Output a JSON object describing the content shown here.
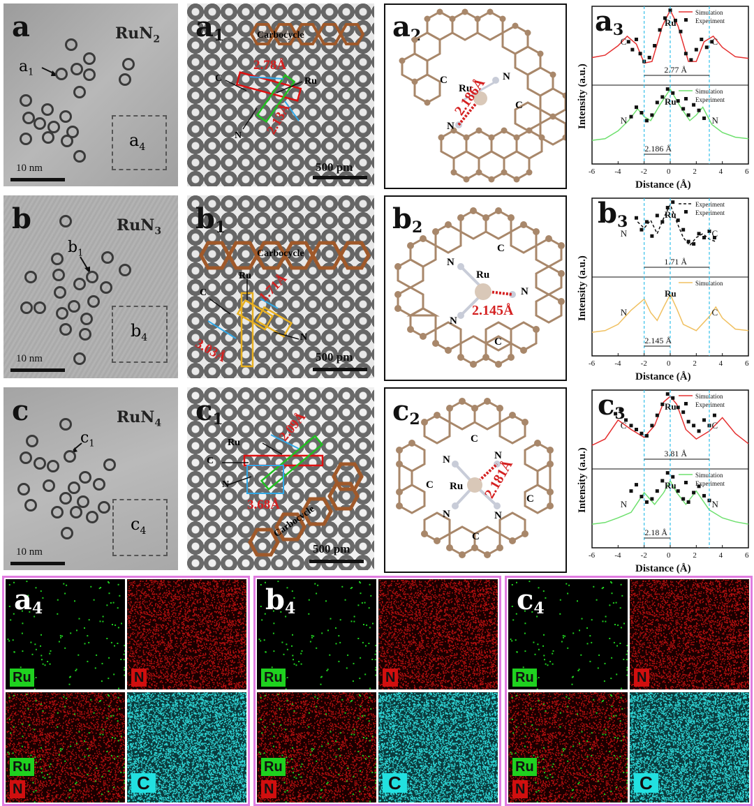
{
  "row_a": {
    "tem_label": "a",
    "formula_main": "RuN",
    "formula_sub": "2",
    "arrow_label": "a",
    "arrow_label_sub": "1",
    "box_label": "a",
    "box_label_sub": "4",
    "scale": "10 nm",
    "zoom_label": "a",
    "zoom_label_sub": "1",
    "zoom_scale": "500 pm",
    "zoom_carbocycle": "Carbocycle",
    "zoom_d1": "2.78Å",
    "zoom_d2": "2.13Å",
    "zoom_c": "C",
    "zoom_ru": "Ru",
    "zoom_n": "N",
    "struct_label": "a",
    "struct_label_sub": "2",
    "struct_bond": "2.186Å",
    "struct_ru": "Ru",
    "struct_n1": "N",
    "struct_n2": "N",
    "struct_c1": "C",
    "struct_c2": "C",
    "chart_label": "a",
    "chart_label_sub": "3"
  },
  "row_b": {
    "tem_label": "b",
    "formula_main": "RuN",
    "formula_sub": "3",
    "arrow_label": "b",
    "arrow_label_sub": "1",
    "box_label": "b",
    "box_label_sub": "4",
    "scale": "10 nm",
    "zoom_label": "b",
    "zoom_label_sub": "1",
    "zoom_scale": "500 pm",
    "zoom_carbocycle": "Carbocycle",
    "zoom_d1": "1.71Å",
    "zoom_d2": "3.03Å",
    "zoom_c": "C",
    "zoom_ru": "Ru",
    "zoom_n": "N",
    "struct_label": "b",
    "struct_label_sub": "2",
    "struct_bond": "2.145Å",
    "struct_ru": "Ru",
    "struct_n1": "N",
    "struct_n2": "N",
    "struct_n3": "N",
    "struct_c1": "C",
    "struct_c2": "C",
    "chart_label": "b",
    "chart_label_sub": "3"
  },
  "row_c": {
    "tem_label": "c",
    "formula_main": "RuN",
    "formula_sub": "4",
    "arrow_label": "c",
    "arrow_label_sub": "1",
    "box_label": "c",
    "box_label_sub": "4",
    "scale": "10 nm",
    "zoom_label": "c",
    "zoom_label_sub": "1",
    "zoom_scale": "500 pm",
    "zoom_carbocycle": "Carbocycle",
    "zoom_d1": "2.09Å",
    "zoom_d2": "3.68Å",
    "zoom_c": "C",
    "zoom_ru": "Ru",
    "zoom_n": "N",
    "struct_label": "c",
    "struct_label_sub": "2",
    "struct_bond": "2.181Å",
    "struct_ru": "Ru",
    "struct_n1": "N",
    "struct_n2": "N",
    "struct_n3": "N",
    "struct_n4": "N",
    "struct_c1": "C",
    "struct_c2": "C",
    "struct_c3": "C",
    "struct_c4": "C",
    "chart_label": "c",
    "chart_label_sub": "3"
  },
  "eds": [
    {
      "label": "a",
      "sub": "4",
      "ru": "Ru",
      "n": "N",
      "c": "C"
    },
    {
      "label": "b",
      "sub": "4",
      "ru": "Ru",
      "n": "N",
      "c": "C"
    },
    {
      "label": "c",
      "sub": "4",
      "ru": "Ru",
      "n": "N",
      "c": "C"
    }
  ],
  "colors": {
    "eds_frame": "#e07be0",
    "ru_tag": "#1fd11f",
    "n_tag": "#d10f0f",
    "c_tag": "#22e0e0",
    "atom_c": "#a8876a",
    "atom_n": "#c8ccd8",
    "atom_ru": "#d9c8b8",
    "bond_red": "#d42020",
    "sim_red": "#e53030",
    "sim_green": "#6ee06e",
    "sim_yellow": "#f0c060",
    "marker_line": "#35c0e8"
  },
  "chart_data": [
    {
      "type": "line",
      "panel": "a3",
      "xlabel": "Distance (Å)",
      "ylabel": "Intensity (a.u.)",
      "xlim": [
        -6,
        6
      ],
      "x_ticks": [
        "-6",
        "-4",
        "-2",
        "0",
        "2",
        "4",
        "6"
      ],
      "subplots": [
        {
          "series": [
            {
              "name": "Simulation",
              "style": "line",
              "color": "#e53030",
              "x": [
                -6,
                -5,
                -4,
                -3.3,
                -2.6,
                -2,
                -1.4,
                -0.6,
                0,
                0.6,
                1.4,
                2,
                2.6,
                3.3,
                4,
                5,
                6
              ],
              "y": [
                0.35,
                0.38,
                0.5,
                0.62,
                0.52,
                0.28,
                0.3,
                0.75,
                0.95,
                0.75,
                0.3,
                0.3,
                0.55,
                0.62,
                0.48,
                0.36,
                0.34
              ]
            },
            {
              "name": "Experiment",
              "style": "square",
              "color": "#111111",
              "x": [
                -3.2,
                -2.9,
                -2.6,
                -2.3,
                -2.0,
                -1.6,
                -1.2,
                -0.8,
                -0.4,
                0,
                0.4,
                0.8,
                1.2,
                1.6,
                2.0,
                2.4,
                2.8,
                3.2
              ],
              "y": [
                0.55,
                0.45,
                0.58,
                0.4,
                0.3,
                0.35,
                0.5,
                0.7,
                0.85,
                0.95,
                0.82,
                0.68,
                0.4,
                0.32,
                0.45,
                0.58,
                0.48,
                0.55
              ]
            }
          ],
          "peak_labels": [
            "C",
            "Ru",
            "C"
          ],
          "annotation": "2.77 Å"
        },
        {
          "series": [
            {
              "name": "Simulation",
              "style": "line",
              "color": "#6ee06e",
              "x": [
                -6,
                -5,
                -4,
                -3.2,
                -2.5,
                -2,
                -1.5,
                -0.8,
                0,
                0.8,
                1.5,
                2,
                2.5,
                3.2,
                4,
                5,
                6
              ],
              "y": [
                0.3,
                0.32,
                0.42,
                0.55,
                0.7,
                0.6,
                0.55,
                0.75,
                0.95,
                0.72,
                0.55,
                0.62,
                0.72,
                0.5,
                0.4,
                0.34,
                0.32
              ]
            },
            {
              "name": "Experiment",
              "style": "square",
              "color": "#111111",
              "x": [
                -3,
                -2.6,
                -2.2,
                -1.8,
                -1.4,
                -1,
                -0.6,
                -0.2,
                0.2,
                0.6,
                1,
                1.4,
                1.8,
                2.2,
                2.6
              ],
              "y": [
                0.6,
                0.72,
                0.65,
                0.55,
                0.62,
                0.78,
                0.85,
                0.95,
                0.9,
                0.8,
                0.7,
                0.62,
                0.75,
                0.68,
                0.58
              ]
            }
          ],
          "peak_labels": [
            "N",
            "Ru",
            "N"
          ],
          "annotation": "2.186 Å"
        }
      ]
    },
    {
      "type": "line",
      "panel": "b3",
      "xlabel": "Distance (Å)",
      "ylabel": "Intensity (a.u.)",
      "xlim": [
        -6,
        6
      ],
      "x_ticks": [
        "-6",
        "-4",
        "-2",
        "0",
        "2",
        "4",
        "6"
      ],
      "subplots": [
        {
          "series": [
            {
              "name": "Experiment",
              "style": "dashed",
              "color": "#111111",
              "x": [
                -2.5,
                -2,
                -1.5,
                -1,
                -0.5,
                0,
                0.5,
                1,
                1.5,
                2,
                2.5,
                3,
                3.5
              ],
              "y": [
                0.7,
                0.62,
                0.72,
                0.55,
                0.75,
                0.92,
                0.7,
                0.5,
                0.4,
                0.5,
                0.55,
                0.48,
                0.45
              ]
            },
            {
              "name": "Experiment",
              "style": "square",
              "color": "#111111",
              "x": [
                -2.6,
                -2.2,
                -1.8,
                -1.4,
                -1,
                -0.6,
                -0.2,
                0.2,
                0.6,
                1,
                1.4,
                1.8,
                2.2,
                2.6,
                3,
                3.4
              ],
              "y": [
                0.75,
                0.6,
                0.7,
                0.52,
                0.78,
                0.7,
                0.88,
                0.95,
                0.72,
                0.6,
                0.45,
                0.42,
                0.55,
                0.5,
                0.58,
                0.5
              ]
            }
          ],
          "peak_labels": [
            "N",
            "Ru",
            "C"
          ],
          "annotation": "1.71 Å"
        },
        {
          "series": [
            {
              "name": "Simulation",
              "style": "line",
              "color": "#f0c060",
              "x": [
                -6,
                -5,
                -4,
                -3,
                -2,
                -1.5,
                -1,
                -0.5,
                0,
                0.5,
                1,
                2,
                3,
                3.5,
                4,
                5,
                6
              ],
              "y": [
                0.3,
                0.32,
                0.4,
                0.58,
                0.72,
                0.55,
                0.45,
                0.62,
                0.78,
                0.6,
                0.4,
                0.32,
                0.5,
                0.62,
                0.48,
                0.34,
                0.32
              ]
            }
          ],
          "peak_labels": [
            "N",
            "Ru",
            "C"
          ],
          "annotation": "2.145 Å"
        }
      ]
    },
    {
      "type": "line",
      "panel": "c3",
      "xlabel": "Distance (Å)",
      "ylabel": "Intensity (a.u.)",
      "xlim": [
        -6,
        6
      ],
      "x_ticks": [
        "-6",
        "-4",
        "-2",
        "0",
        "2",
        "4",
        "6"
      ],
      "subplots": [
        {
          "series": [
            {
              "name": "Simulation",
              "style": "line",
              "color": "#e53030",
              "x": [
                -6,
                -5,
                -4,
                -3,
                -2,
                -1.2,
                -0.5,
                0,
                0.5,
                1.2,
                2,
                3,
                4,
                5,
                6
              ],
              "y": [
                0.3,
                0.38,
                0.62,
                0.5,
                0.4,
                0.55,
                0.85,
                0.92,
                0.82,
                0.5,
                0.38,
                0.48,
                0.65,
                0.45,
                0.32
              ]
            },
            {
              "name": "Experiment",
              "style": "square",
              "color": "#111111",
              "x": [
                -4.2,
                -3.8,
                -3.4,
                -3,
                -2.6,
                -2.2,
                -1.8,
                -1.4,
                -1,
                -0.6,
                -0.2,
                0.2,
                0.6,
                1,
                1.4,
                1.8,
                2.2,
                2.6,
                3,
                3.4
              ],
              "y": [
                0.7,
                0.75,
                0.62,
                0.55,
                0.5,
                0.45,
                0.42,
                0.55,
                0.68,
                0.82,
                0.95,
                0.9,
                0.78,
                0.72,
                0.6,
                0.55,
                0.48,
                0.62,
                0.55,
                0.68
              ]
            }
          ],
          "peak_labels": [
            "C",
            "Ru",
            "C"
          ],
          "annotation": "3.81 Å"
        },
        {
          "series": [
            {
              "name": "Simulation",
              "style": "line",
              "color": "#6ee06e",
              "x": [
                -6,
                -5,
                -4,
                -3,
                -2,
                -1.2,
                -0.5,
                0,
                0.5,
                1.2,
                2,
                3,
                4,
                5,
                6
              ],
              "y": [
                0.3,
                0.32,
                0.38,
                0.45,
                0.7,
                0.55,
                0.7,
                0.85,
                0.7,
                0.55,
                0.72,
                0.48,
                0.38,
                0.33,
                0.3
              ]
            },
            {
              "name": "Experiment",
              "style": "square",
              "color": "#111111",
              "x": [
                -3,
                -2.6,
                -2.2,
                -1.8,
                -1.4,
                -1,
                -0.6,
                -0.2,
                0.2,
                0.6,
                1,
                1.4,
                1.8,
                2.2,
                2.6,
                3
              ],
              "y": [
                0.72,
                0.8,
                0.65,
                0.58,
                0.62,
                0.72,
                0.85,
                0.95,
                0.9,
                0.72,
                0.62,
                0.58,
                0.7,
                0.78,
                0.66,
                0.6
              ]
            }
          ],
          "peak_labels": [
            "N",
            "Ru",
            "N"
          ],
          "annotation": "2.18 Å"
        }
      ]
    }
  ]
}
